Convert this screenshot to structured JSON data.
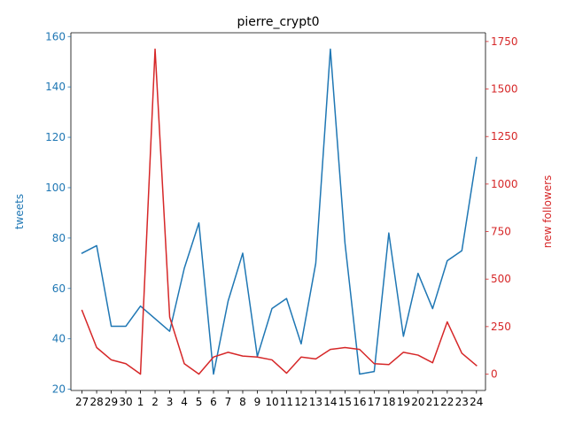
{
  "chart_data": {
    "type": "line",
    "title": "pierre_crypt0",
    "categories": [
      "27",
      "28",
      "29",
      "30",
      "1",
      "2",
      "3",
      "4",
      "5",
      "6",
      "7",
      "8",
      "9",
      "10",
      "11",
      "12",
      "13",
      "14",
      "15",
      "16",
      "17",
      "18",
      "19",
      "20",
      "21",
      "22",
      "23",
      "24"
    ],
    "series": [
      {
        "name": "tweets",
        "axis": "left",
        "color": "#1f77b4",
        "values": [
          74,
          77,
          45,
          45,
          53,
          48,
          43,
          68,
          86,
          26,
          55,
          74,
          33,
          52,
          56,
          38,
          70,
          155,
          78,
          26,
          27,
          82,
          41,
          66,
          52,
          71,
          75,
          112
        ]
      },
      {
        "name": "new followers",
        "axis": "right",
        "color": "#d62728",
        "values": [
          335,
          140,
          75,
          55,
          0,
          1710,
          300,
          55,
          0,
          90,
          115,
          95,
          90,
          75,
          5,
          90,
          80,
          130,
          140,
          130,
          55,
          50,
          115,
          100,
          60,
          275,
          110,
          45
        ]
      }
    ],
    "ylabel": "tweets",
    "ylabel_right": "new followers",
    "ylim": [
      19.5,
      161.5
    ],
    "ylim_right": [
      -86,
      1796
    ],
    "yticks": [
      20,
      40,
      60,
      80,
      100,
      120,
      140,
      160
    ],
    "yticks_right": [
      0,
      250,
      500,
      750,
      1000,
      1250,
      1500,
      1750
    ],
    "grid": false
  }
}
